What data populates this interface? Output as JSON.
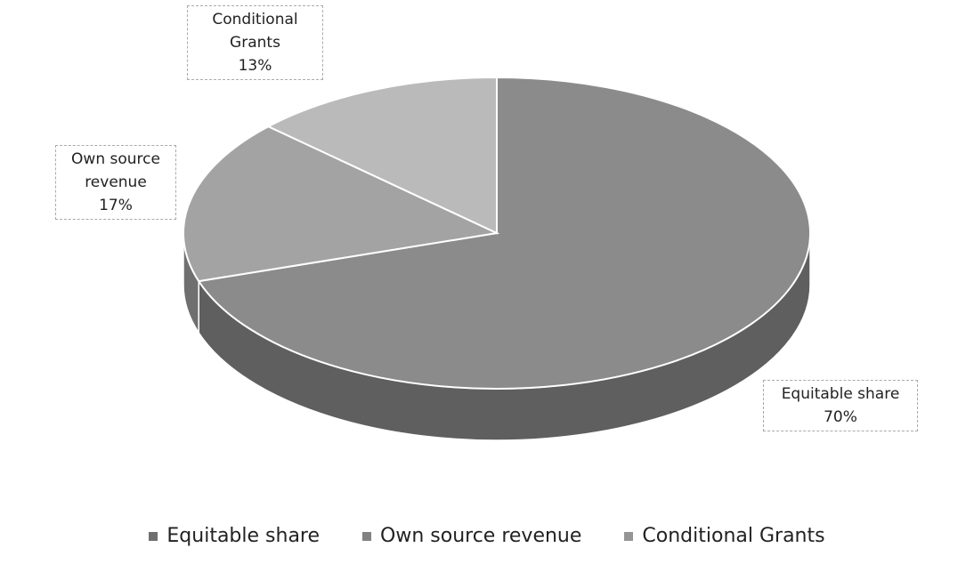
{
  "chart_data": {
    "type": "pie",
    "categories": [
      "Equitable share",
      "Own source revenue",
      "Conditional Grants"
    ],
    "values": [
      70,
      17,
      13
    ],
    "value_labels": [
      "70%",
      "17%",
      "13%"
    ],
    "colors": [
      "#8b8b8b",
      "#a3a3a3",
      "#bababa"
    ],
    "legend": "bottom"
  }
}
